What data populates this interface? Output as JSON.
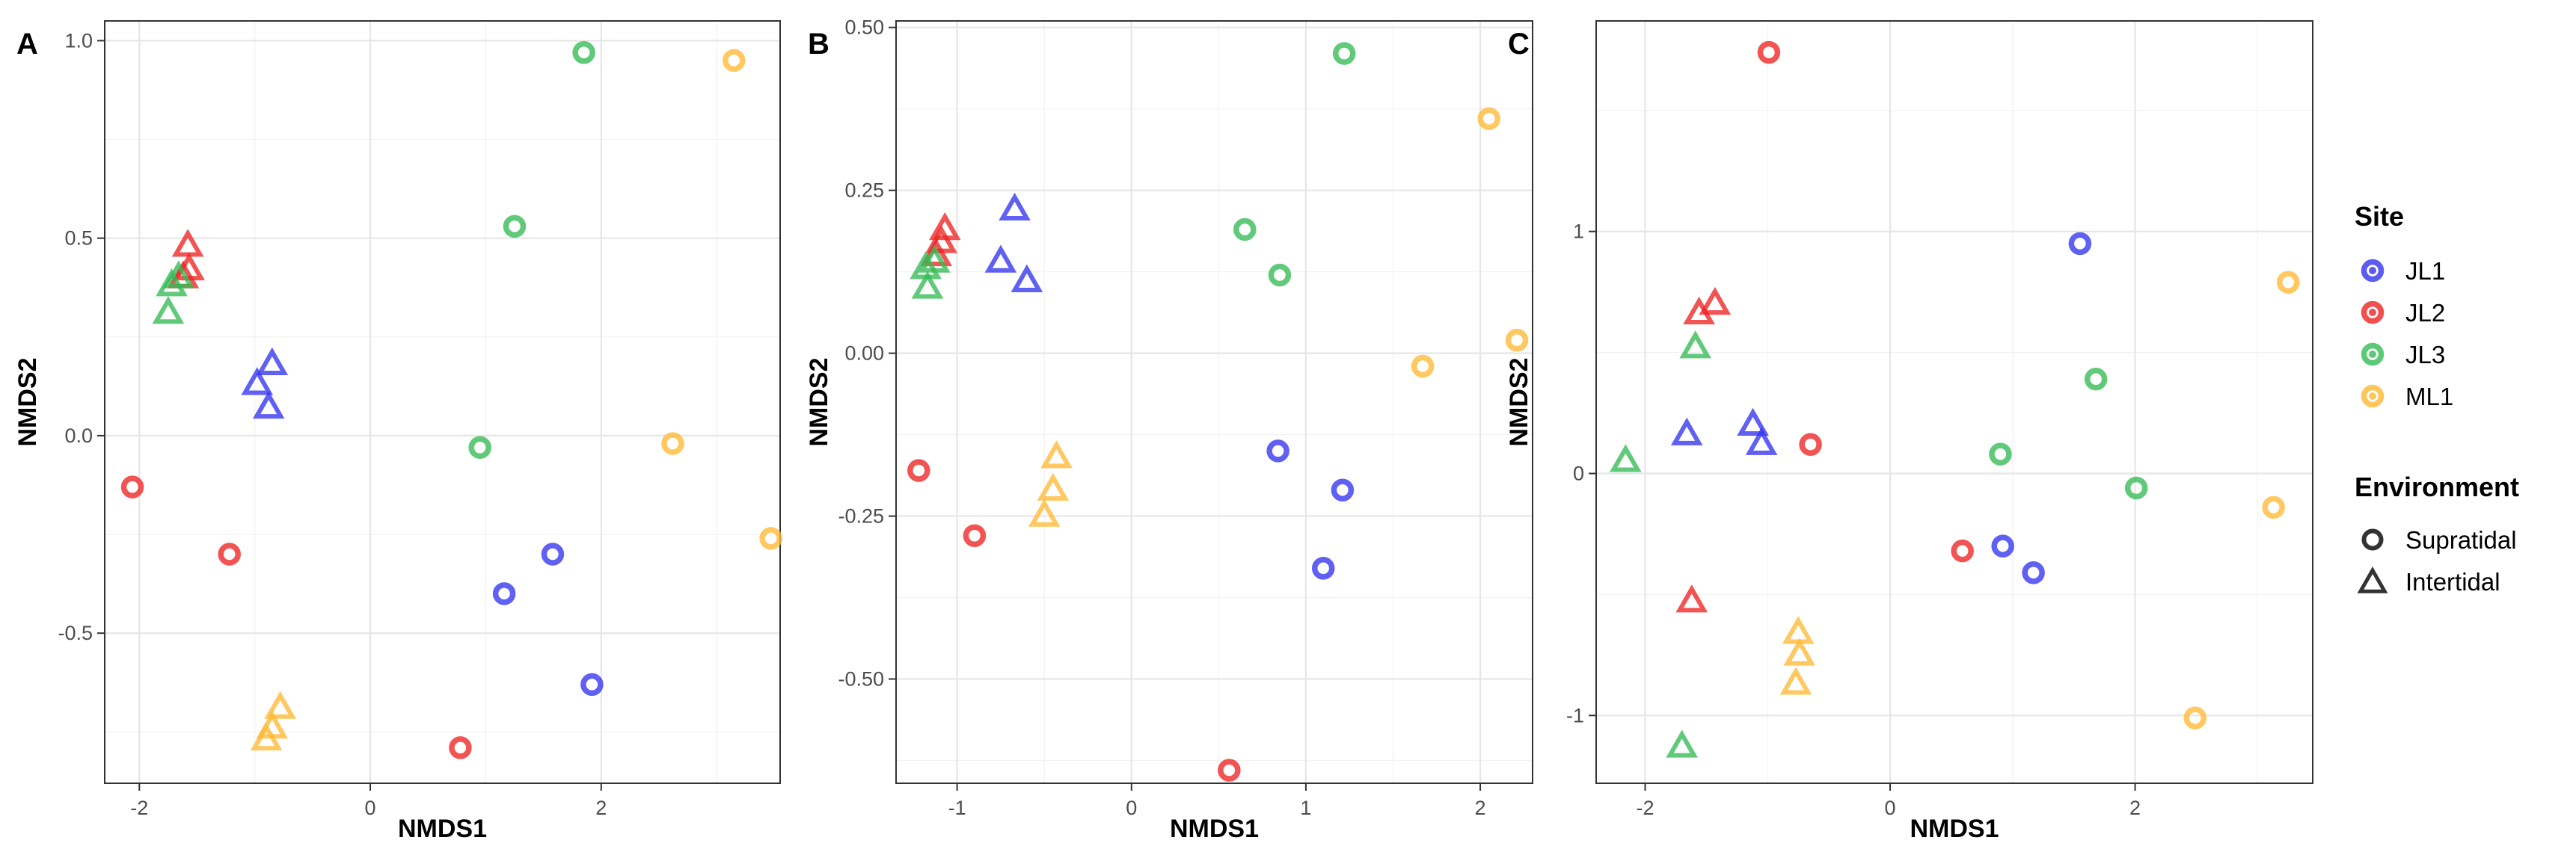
{
  "colors": {
    "JL1": "#3333EE",
    "JL2": "#EE2222",
    "JL3": "#33BB55",
    "ML1": "#FFB833"
  },
  "legend": {
    "site_title": "Site",
    "sites": [
      "JL1",
      "JL2",
      "JL3",
      "ML1"
    ],
    "environment_title": "Environment",
    "environments": [
      {
        "name": "Supratidal",
        "shape": "circle"
      },
      {
        "name": "Intertidal",
        "shape": "triangle"
      }
    ]
  },
  "chart_data": [
    {
      "type": "scatter",
      "panel_label": "A",
      "xlabel": "NMDS1",
      "ylabel": "NMDS2",
      "xlim": [
        -2.3,
        3.55
      ],
      "ylim": [
        -0.88,
        1.05
      ],
      "xticks": [
        -2,
        0,
        2
      ],
      "yticks": [
        -0.5,
        0.0,
        0.5,
        1.0
      ],
      "yticklabels": [
        "-0.5",
        "0.0",
        "0.5",
        "1.0"
      ],
      "points": [
        {
          "site": "JL1",
          "env": "Supratidal",
          "x": 1.58,
          "y": -0.3
        },
        {
          "site": "JL1",
          "env": "Supratidal",
          "x": 1.16,
          "y": -0.4
        },
        {
          "site": "JL1",
          "env": "Supratidal",
          "x": 1.92,
          "y": -0.63
        },
        {
          "site": "JL1",
          "env": "Intertidal",
          "x": -0.98,
          "y": 0.13
        },
        {
          "site": "JL1",
          "env": "Intertidal",
          "x": -0.85,
          "y": 0.18
        },
        {
          "site": "JL1",
          "env": "Intertidal",
          "x": -0.88,
          "y": 0.07
        },
        {
          "site": "JL2",
          "env": "Supratidal",
          "x": -2.06,
          "y": -0.13
        },
        {
          "site": "JL2",
          "env": "Supratidal",
          "x": -1.22,
          "y": -0.3
        },
        {
          "site": "JL2",
          "env": "Supratidal",
          "x": 0.78,
          "y": -0.79
        },
        {
          "site": "JL2",
          "env": "Intertidal",
          "x": -1.58,
          "y": 0.48
        },
        {
          "site": "JL2",
          "env": "Intertidal",
          "x": -1.57,
          "y": 0.42
        },
        {
          "site": "JL2",
          "env": "Intertidal",
          "x": -1.62,
          "y": 0.4
        },
        {
          "site": "JL3",
          "env": "Supratidal",
          "x": 1.85,
          "y": 0.97
        },
        {
          "site": "JL3",
          "env": "Supratidal",
          "x": 1.25,
          "y": 0.53
        },
        {
          "site": "JL3",
          "env": "Supratidal",
          "x": 0.95,
          "y": -0.03
        },
        {
          "site": "JL3",
          "env": "Intertidal",
          "x": -1.72,
          "y": 0.38
        },
        {
          "site": "JL3",
          "env": "Intertidal",
          "x": -1.75,
          "y": 0.31
        },
        {
          "site": "JL3",
          "env": "Intertidal",
          "x": -1.66,
          "y": 0.4
        },
        {
          "site": "ML1",
          "env": "Supratidal",
          "x": 3.15,
          "y": 0.95
        },
        {
          "site": "ML1",
          "env": "Supratidal",
          "x": 2.62,
          "y": -0.02
        },
        {
          "site": "ML1",
          "env": "Supratidal",
          "x": 3.47,
          "y": -0.26
        },
        {
          "site": "ML1",
          "env": "Intertidal",
          "x": -0.78,
          "y": -0.69
        },
        {
          "site": "ML1",
          "env": "Intertidal",
          "x": -0.85,
          "y": -0.74
        },
        {
          "site": "ML1",
          "env": "Intertidal",
          "x": -0.9,
          "y": -0.77
        }
      ]
    },
    {
      "type": "scatter",
      "panel_label": "B",
      "xlabel": "NMDS1",
      "ylabel": "NMDS2",
      "xlim": [
        -1.35,
        2.3
      ],
      "ylim": [
        -0.66,
        0.51
      ],
      "xticks": [
        -1,
        0,
        1,
        2
      ],
      "yticks": [
        -0.5,
        -0.25,
        0.0,
        0.25,
        0.5
      ],
      "yticklabels": [
        "-0.50",
        "-0.25",
        "0.00",
        "0.25",
        "0.50"
      ],
      "points": [
        {
          "site": "JL1",
          "env": "Supratidal",
          "x": 0.84,
          "y": -0.15
        },
        {
          "site": "JL1",
          "env": "Supratidal",
          "x": 1.21,
          "y": -0.21
        },
        {
          "site": "JL1",
          "env": "Supratidal",
          "x": 1.1,
          "y": -0.33
        },
        {
          "site": "JL1",
          "env": "Intertidal",
          "x": -0.67,
          "y": 0.22
        },
        {
          "site": "JL1",
          "env": "Intertidal",
          "x": -0.75,
          "y": 0.14
        },
        {
          "site": "JL1",
          "env": "Intertidal",
          "x": -0.6,
          "y": 0.11
        },
        {
          "site": "JL2",
          "env": "Supratidal",
          "x": -1.22,
          "y": -0.18
        },
        {
          "site": "JL2",
          "env": "Supratidal",
          "x": -0.9,
          "y": -0.28
        },
        {
          "site": "JL2",
          "env": "Supratidal",
          "x": 0.56,
          "y": -0.64
        },
        {
          "site": "JL2",
          "env": "Intertidal",
          "x": -1.07,
          "y": 0.19
        },
        {
          "site": "JL2",
          "env": "Intertidal",
          "x": -1.09,
          "y": 0.17
        },
        {
          "site": "JL2",
          "env": "Intertidal",
          "x": -1.12,
          "y": 0.15
        },
        {
          "site": "JL3",
          "env": "Supratidal",
          "x": 1.22,
          "y": 0.46
        },
        {
          "site": "JL3",
          "env": "Supratidal",
          "x": 0.65,
          "y": 0.19
        },
        {
          "site": "JL3",
          "env": "Supratidal",
          "x": 0.85,
          "y": 0.12
        },
        {
          "site": "JL3",
          "env": "Intertidal",
          "x": -1.18,
          "y": 0.13
        },
        {
          "site": "JL3",
          "env": "Intertidal",
          "x": -1.17,
          "y": 0.1
        },
        {
          "site": "JL3",
          "env": "Intertidal",
          "x": -1.13,
          "y": 0.14
        },
        {
          "site": "ML1",
          "env": "Supratidal",
          "x": 2.05,
          "y": 0.36
        },
        {
          "site": "ML1",
          "env": "Supratidal",
          "x": 1.67,
          "y": -0.02
        },
        {
          "site": "ML1",
          "env": "Supratidal",
          "x": 2.21,
          "y": 0.02
        },
        {
          "site": "ML1",
          "env": "Intertidal",
          "x": -0.43,
          "y": -0.16
        },
        {
          "site": "ML1",
          "env": "Intertidal",
          "x": -0.45,
          "y": -0.21
        },
        {
          "site": "ML1",
          "env": "Intertidal",
          "x": -0.5,
          "y": -0.25
        }
      ]
    },
    {
      "type": "scatter",
      "panel_label": "C",
      "xlabel": "NMDS1",
      "ylabel": "NMDS2",
      "xlim": [
        -2.4,
        3.45
      ],
      "ylim": [
        -1.28,
        1.87
      ],
      "xticks": [
        -2,
        0,
        2
      ],
      "yticks": [
        -1,
        0,
        1
      ],
      "yticklabels": [
        "-1",
        "0",
        "1"
      ],
      "points": [
        {
          "site": "JL1",
          "env": "Supratidal",
          "x": 1.55,
          "y": 0.95
        },
        {
          "site": "JL1",
          "env": "Supratidal",
          "x": 0.92,
          "y": -0.3
        },
        {
          "site": "JL1",
          "env": "Supratidal",
          "x": 1.17,
          "y": -0.41
        },
        {
          "site": "JL1",
          "env": "Intertidal",
          "x": -1.66,
          "y": 0.16
        },
        {
          "site": "JL1",
          "env": "Intertidal",
          "x": -1.12,
          "y": 0.2
        },
        {
          "site": "JL1",
          "env": "Intertidal",
          "x": -1.05,
          "y": 0.12
        },
        {
          "site": "JL2",
          "env": "Supratidal",
          "x": -0.99,
          "y": 1.74
        },
        {
          "site": "JL2",
          "env": "Supratidal",
          "x": -0.65,
          "y": 0.12
        },
        {
          "site": "JL2",
          "env": "Supratidal",
          "x": 0.59,
          "y": -0.32
        },
        {
          "site": "JL2",
          "env": "Intertidal",
          "x": -1.56,
          "y": 0.66
        },
        {
          "site": "JL2",
          "env": "Intertidal",
          "x": -1.43,
          "y": 0.7
        },
        {
          "site": "JL2",
          "env": "Intertidal",
          "x": -1.62,
          "y": -0.53
        },
        {
          "site": "JL3",
          "env": "Supratidal",
          "x": 1.68,
          "y": 0.39
        },
        {
          "site": "JL3",
          "env": "Supratidal",
          "x": 0.9,
          "y": 0.08
        },
        {
          "site": "JL3",
          "env": "Supratidal",
          "x": 2.01,
          "y": -0.06
        },
        {
          "site": "JL3",
          "env": "Intertidal",
          "x": -1.59,
          "y": 0.52
        },
        {
          "site": "JL3",
          "env": "Intertidal",
          "x": -2.16,
          "y": 0.05
        },
        {
          "site": "JL3",
          "env": "Intertidal",
          "x": -1.7,
          "y": -1.13
        },
        {
          "site": "ML1",
          "env": "Supratidal",
          "x": 3.25,
          "y": 0.79
        },
        {
          "site": "ML1",
          "env": "Supratidal",
          "x": 3.13,
          "y": -0.14
        },
        {
          "site": "ML1",
          "env": "Supratidal",
          "x": 2.49,
          "y": -1.01
        },
        {
          "site": "ML1",
          "env": "Intertidal",
          "x": -0.75,
          "y": -0.66
        },
        {
          "site": "ML1",
          "env": "Intertidal",
          "x": -0.74,
          "y": -0.75
        },
        {
          "site": "ML1",
          "env": "Intertidal",
          "x": -0.77,
          "y": -0.87
        }
      ]
    }
  ]
}
